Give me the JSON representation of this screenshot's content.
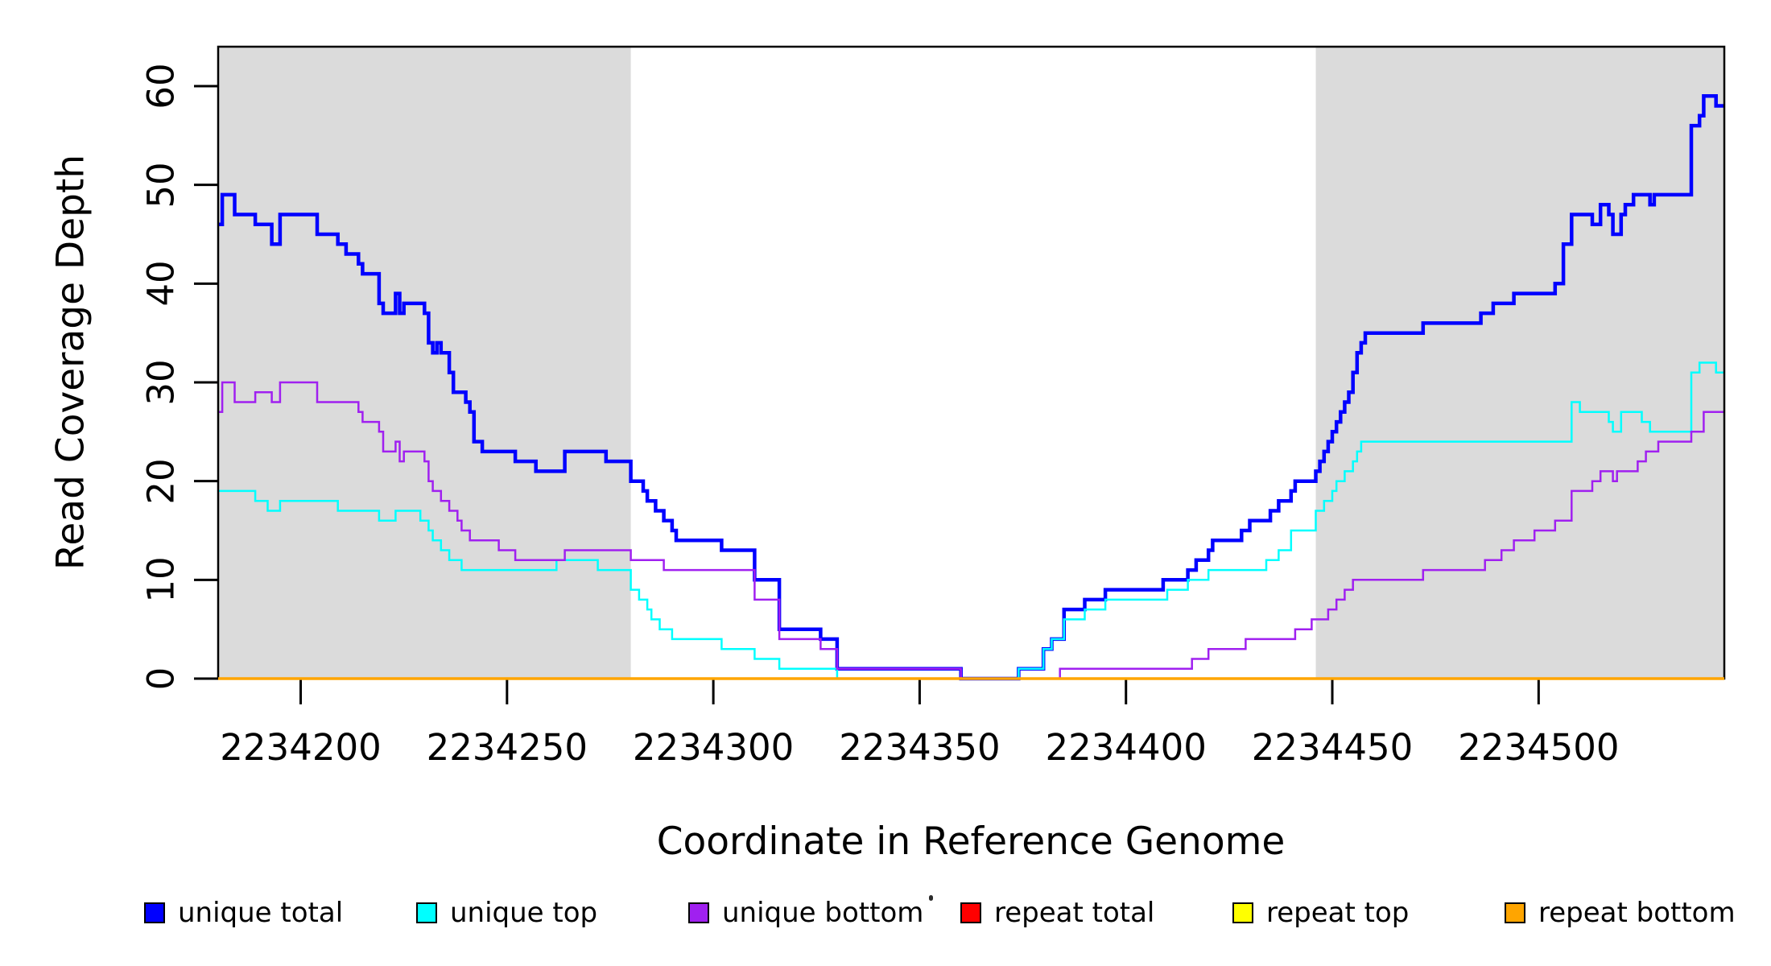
{
  "chart_data": {
    "type": "line",
    "style": "step-after",
    "title": "",
    "xlabel": "Coordinate in Reference Genome",
    "ylabel": "Read Coverage Depth",
    "xlim": [
      2234180,
      2234545
    ],
    "ylim": [
      0,
      64
    ],
    "grid": false,
    "x_axis": {
      "ticks": [
        {
          "value": 2234200,
          "label": "2234200"
        },
        {
          "value": 2234250,
          "label": "2234250"
        },
        {
          "value": 2234300,
          "label": "2234300"
        },
        {
          "value": 2234350,
          "label": "2234350"
        },
        {
          "value": 2234400,
          "label": "2234400"
        },
        {
          "value": 2234450,
          "label": "2234450"
        },
        {
          "value": 2234500,
          "label": "2234500"
        }
      ]
    },
    "y_axis": {
      "ticks": [
        {
          "value": 0,
          "label": "0"
        },
        {
          "value": 10,
          "label": "10"
        },
        {
          "value": 20,
          "label": "20"
        },
        {
          "value": 30,
          "label": "30"
        },
        {
          "value": 40,
          "label": "40"
        },
        {
          "value": 50,
          "label": "50"
        },
        {
          "value": 60,
          "label": "60"
        }
      ]
    },
    "shaded_regions": [
      {
        "x0": 2234180,
        "x1": 2234280,
        "color": "#DBDBDB"
      },
      {
        "x0": 2234446,
        "x1": 2234545,
        "color": "#DBDBDB"
      }
    ],
    "series": [
      {
        "name": "unique total",
        "color": "#0000FF",
        "lwd": 4.5,
        "points": [
          [
            2234180,
            46
          ],
          [
            2234181,
            49
          ],
          [
            2234184,
            47
          ],
          [
            2234189,
            46
          ],
          [
            2234193,
            44
          ],
          [
            2234195,
            47
          ],
          [
            2234204,
            45
          ],
          [
            2234209,
            44
          ],
          [
            2234211,
            43
          ],
          [
            2234214,
            42
          ],
          [
            2234215,
            41
          ],
          [
            2234219,
            38
          ],
          [
            2234220,
            37
          ],
          [
            2234223,
            39
          ],
          [
            2234224,
            37
          ],
          [
            2234225,
            38
          ],
          [
            2234230,
            37
          ],
          [
            2234231,
            34
          ],
          [
            2234232,
            33
          ],
          [
            2234233,
            34
          ],
          [
            2234234,
            33
          ],
          [
            2234236,
            31
          ],
          [
            2234237,
            29
          ],
          [
            2234240,
            28
          ],
          [
            2234241,
            27
          ],
          [
            2234242,
            24
          ],
          [
            2234244,
            23
          ],
          [
            2234252,
            22
          ],
          [
            2234257,
            21
          ],
          [
            2234264,
            23
          ],
          [
            2234274,
            22
          ],
          [
            2234280,
            20
          ],
          [
            2234283,
            19
          ],
          [
            2234284,
            18
          ],
          [
            2234286,
            17
          ],
          [
            2234288,
            16
          ],
          [
            2234290,
            15
          ],
          [
            2234291,
            14
          ],
          [
            2234302,
            13
          ],
          [
            2234310,
            10
          ],
          [
            2234316,
            5
          ],
          [
            2234326,
            4
          ],
          [
            2234330,
            1
          ],
          [
            2234360,
            0
          ],
          [
            2234374,
            1
          ],
          [
            2234380,
            3
          ],
          [
            2234382,
            4
          ],
          [
            2234385,
            7
          ],
          [
            2234390,
            8
          ],
          [
            2234395,
            9
          ],
          [
            2234409,
            10
          ],
          [
            2234415,
            11
          ],
          [
            2234417,
            12
          ],
          [
            2234420,
            13
          ],
          [
            2234421,
            14
          ],
          [
            2234428,
            15
          ],
          [
            2234430,
            16
          ],
          [
            2234435,
            17
          ],
          [
            2234437,
            18
          ],
          [
            2234440,
            19
          ],
          [
            2234441,
            20
          ],
          [
            2234446,
            21
          ],
          [
            2234447,
            22
          ],
          [
            2234448,
            23
          ],
          [
            2234449,
            24
          ],
          [
            2234450,
            25
          ],
          [
            2234451,
            26
          ],
          [
            2234452,
            27
          ],
          [
            2234453,
            28
          ],
          [
            2234454,
            29
          ],
          [
            2234455,
            31
          ],
          [
            2234456,
            33
          ],
          [
            2234457,
            34
          ],
          [
            2234458,
            35
          ],
          [
            2234472,
            36
          ],
          [
            2234486,
            37
          ],
          [
            2234489,
            38
          ],
          [
            2234494,
            39
          ],
          [
            2234504,
            40
          ],
          [
            2234506,
            44
          ],
          [
            2234508,
            47
          ],
          [
            2234513,
            46
          ],
          [
            2234515,
            48
          ],
          [
            2234517,
            47
          ],
          [
            2234518,
            45
          ],
          [
            2234520,
            47
          ],
          [
            2234521,
            48
          ],
          [
            2234523,
            49
          ],
          [
            2234527,
            48
          ],
          [
            2234528,
            49
          ],
          [
            2234537,
            56
          ],
          [
            2234539,
            57
          ],
          [
            2234540,
            59
          ],
          [
            2234543,
            58
          ]
        ]
      },
      {
        "name": "unique top",
        "color": "#00FFFF",
        "lwd": 2.5,
        "points": [
          [
            2234180,
            19
          ],
          [
            2234189,
            18
          ],
          [
            2234192,
            17
          ],
          [
            2234195,
            18
          ],
          [
            2234209,
            17
          ],
          [
            2234219,
            16
          ],
          [
            2234223,
            17
          ],
          [
            2234229,
            16
          ],
          [
            2234231,
            15
          ],
          [
            2234232,
            14
          ],
          [
            2234234,
            13
          ],
          [
            2234236,
            12
          ],
          [
            2234239,
            11
          ],
          [
            2234262,
            12
          ],
          [
            2234272,
            11
          ],
          [
            2234280,
            9
          ],
          [
            2234282,
            8
          ],
          [
            2234284,
            7
          ],
          [
            2234285,
            6
          ],
          [
            2234287,
            5
          ],
          [
            2234290,
            4
          ],
          [
            2234302,
            3
          ],
          [
            2234310,
            2
          ],
          [
            2234316,
            1
          ],
          [
            2234330,
            0
          ],
          [
            2234374,
            1
          ],
          [
            2234380,
            3
          ],
          [
            2234382,
            4
          ],
          [
            2234385,
            6
          ],
          [
            2234390,
            7
          ],
          [
            2234395,
            8
          ],
          [
            2234410,
            9
          ],
          [
            2234415,
            10
          ],
          [
            2234420,
            11
          ],
          [
            2234434,
            12
          ],
          [
            2234437,
            13
          ],
          [
            2234440,
            15
          ],
          [
            2234446,
            17
          ],
          [
            2234448,
            18
          ],
          [
            2234450,
            19
          ],
          [
            2234451,
            20
          ],
          [
            2234453,
            21
          ],
          [
            2234455,
            22
          ],
          [
            2234456,
            23
          ],
          [
            2234457,
            24
          ],
          [
            2234508,
            28
          ],
          [
            2234510,
            27
          ],
          [
            2234517,
            26
          ],
          [
            2234518,
            25
          ],
          [
            2234520,
            27
          ],
          [
            2234525,
            26
          ],
          [
            2234527,
            25
          ],
          [
            2234537,
            31
          ],
          [
            2234539,
            32
          ],
          [
            2234543,
            31
          ]
        ]
      },
      {
        "name": "unique bottom",
        "color": "#A020F0",
        "lwd": 2.5,
        "points": [
          [
            2234180,
            27
          ],
          [
            2234181,
            30
          ],
          [
            2234184,
            28
          ],
          [
            2234189,
            29
          ],
          [
            2234193,
            28
          ],
          [
            2234195,
            30
          ],
          [
            2234204,
            28
          ],
          [
            2234214,
            27
          ],
          [
            2234215,
            26
          ],
          [
            2234219,
            25
          ],
          [
            2234220,
            23
          ],
          [
            2234223,
            24
          ],
          [
            2234224,
            22
          ],
          [
            2234225,
            23
          ],
          [
            2234230,
            22
          ],
          [
            2234231,
            20
          ],
          [
            2234232,
            19
          ],
          [
            2234234,
            18
          ],
          [
            2234236,
            17
          ],
          [
            2234238,
            16
          ],
          [
            2234239,
            15
          ],
          [
            2234241,
            14
          ],
          [
            2234248,
            13
          ],
          [
            2234252,
            12
          ],
          [
            2234264,
            13
          ],
          [
            2234280,
            12
          ],
          [
            2234288,
            11
          ],
          [
            2234310,
            8
          ],
          [
            2234316,
            4
          ],
          [
            2234326,
            3
          ],
          [
            2234330,
            1
          ],
          [
            2234360,
            0
          ],
          [
            2234384,
            1
          ],
          [
            2234416,
            2
          ],
          [
            2234420,
            3
          ],
          [
            2234429,
            4
          ],
          [
            2234441,
            5
          ],
          [
            2234445,
            6
          ],
          [
            2234449,
            7
          ],
          [
            2234451,
            8
          ],
          [
            2234453,
            9
          ],
          [
            2234455,
            10
          ],
          [
            2234472,
            11
          ],
          [
            2234487,
            12
          ],
          [
            2234491,
            13
          ],
          [
            2234494,
            14
          ],
          [
            2234499,
            15
          ],
          [
            2234504,
            16
          ],
          [
            2234508,
            19
          ],
          [
            2234513,
            20
          ],
          [
            2234515,
            21
          ],
          [
            2234518,
            20
          ],
          [
            2234519,
            21
          ],
          [
            2234524,
            22
          ],
          [
            2234526,
            23
          ],
          [
            2234529,
            24
          ],
          [
            2234537,
            25
          ],
          [
            2234540,
            27
          ]
        ]
      },
      {
        "name": "repeat total",
        "color": "#FF0000",
        "lwd": 2,
        "points": [
          [
            2234180,
            0
          ]
        ]
      },
      {
        "name": "repeat top",
        "color": "#FFFF00",
        "lwd": 2,
        "points": [
          [
            2234180,
            0
          ]
        ]
      },
      {
        "name": "repeat bottom",
        "color": "#FFA500",
        "lwd": 3.5,
        "points": [
          [
            2234180,
            0
          ]
        ]
      }
    ],
    "legend": {
      "position": "bottom",
      "items": [
        {
          "label": "unique total",
          "color": "#0000FF"
        },
        {
          "label": "unique top",
          "color": "#00FFFF"
        },
        {
          "label": "unique bottom",
          "color": "#A020F0"
        },
        {
          "label": "repeat total",
          "color": "#FF0000"
        },
        {
          "label": "repeat top",
          "color": "#FFFF00"
        },
        {
          "label": "repeat bottom",
          "color": "#FFA500"
        }
      ]
    }
  }
}
